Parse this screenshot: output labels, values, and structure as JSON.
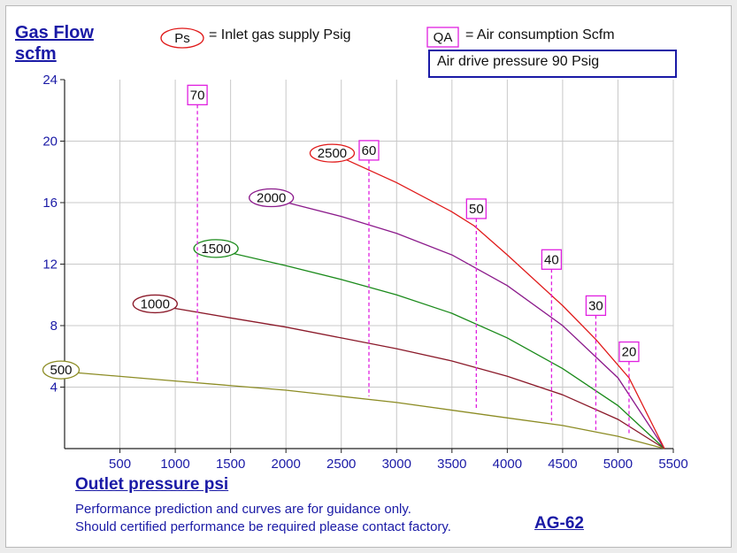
{
  "chart_data": {
    "type": "line",
    "title": "",
    "ylabel": [
      "Gas Flow",
      "scfm"
    ],
    "xlabel": "Outlet pressure   psi",
    "xlim": [
      0,
      5500
    ],
    "ylim": [
      0,
      24
    ],
    "x_ticks": [
      500,
      1000,
      1500,
      2000,
      2500,
      3000,
      3500,
      4000,
      4500,
      5000,
      5500
    ],
    "y_ticks": [
      4,
      8,
      12,
      16,
      20,
      24
    ],
    "grid": true,
    "legend": {
      "ps_symbol": "Ps",
      "ps_text": "= Inlet gas supply  Psig",
      "qa_symbol": "QA",
      "qa_text": "= Air consumption  Scfm",
      "air_drive": "Air drive pressure  90 Psig"
    },
    "series": [
      {
        "name": "500",
        "color": "#8c8c24",
        "x": [
          0,
          1000,
          2000,
          3000,
          4000,
          4500,
          5000,
          5420
        ],
        "y": [
          5.0,
          4.4,
          3.8,
          3.0,
          2.0,
          1.5,
          0.8,
          0
        ]
      },
      {
        "name": "1000",
        "color": "#8b1a2a",
        "x": [
          850,
          1500,
          2000,
          2500,
          3000,
          3500,
          4000,
          4500,
          5000,
          5420
        ],
        "y": [
          9.3,
          8.5,
          7.9,
          7.2,
          6.5,
          5.7,
          4.7,
          3.5,
          1.9,
          0
        ]
      },
      {
        "name": "1500",
        "color": "#1a8a1a",
        "x": [
          1400,
          2000,
          2500,
          3000,
          3500,
          4000,
          4500,
          5000,
          5420
        ],
        "y": [
          12.9,
          11.9,
          11.0,
          10.0,
          8.8,
          7.2,
          5.2,
          2.8,
          0
        ]
      },
      {
        "name": "2000",
        "color": "#8b1a8b",
        "x": [
          1900,
          2500,
          3000,
          3500,
          4000,
          4500,
          5000,
          5420
        ],
        "y": [
          16.2,
          15.1,
          14.0,
          12.6,
          10.6,
          8.0,
          4.6,
          0
        ]
      },
      {
        "name": "2500",
        "color": "#e01a1a",
        "x": [
          2450,
          3000,
          3500,
          3700,
          4000,
          4500,
          4800,
          5100,
          5420
        ],
        "y": [
          19.1,
          17.3,
          15.4,
          14.5,
          12.6,
          9.3,
          7.1,
          4.6,
          0
        ]
      }
    ],
    "qa_markers": [
      {
        "label": "70",
        "x": 1200,
        "y_top": 23.0,
        "y_bottom": 4.4
      },
      {
        "label": "60",
        "x": 2750,
        "y_top": 19.4,
        "y_bottom": 3.4
      },
      {
        "label": "50",
        "x": 3720,
        "y_top": 15.6,
        "y_bottom": 2.5
      },
      {
        "label": "40",
        "x": 4400,
        "y_top": 12.3,
        "y_bottom": 1.8
      },
      {
        "label": "30",
        "x": 4800,
        "y_top": 9.3,
        "y_bottom": 1.2
      },
      {
        "label": "20",
        "x": 5100,
        "y_top": 6.3,
        "y_bottom": 0.9
      }
    ]
  },
  "notes": {
    "line1": "Performance prediction and curves are for guidance only.",
    "line2": "Should certified performance be required please contact factory."
  },
  "model": "AG-62"
}
